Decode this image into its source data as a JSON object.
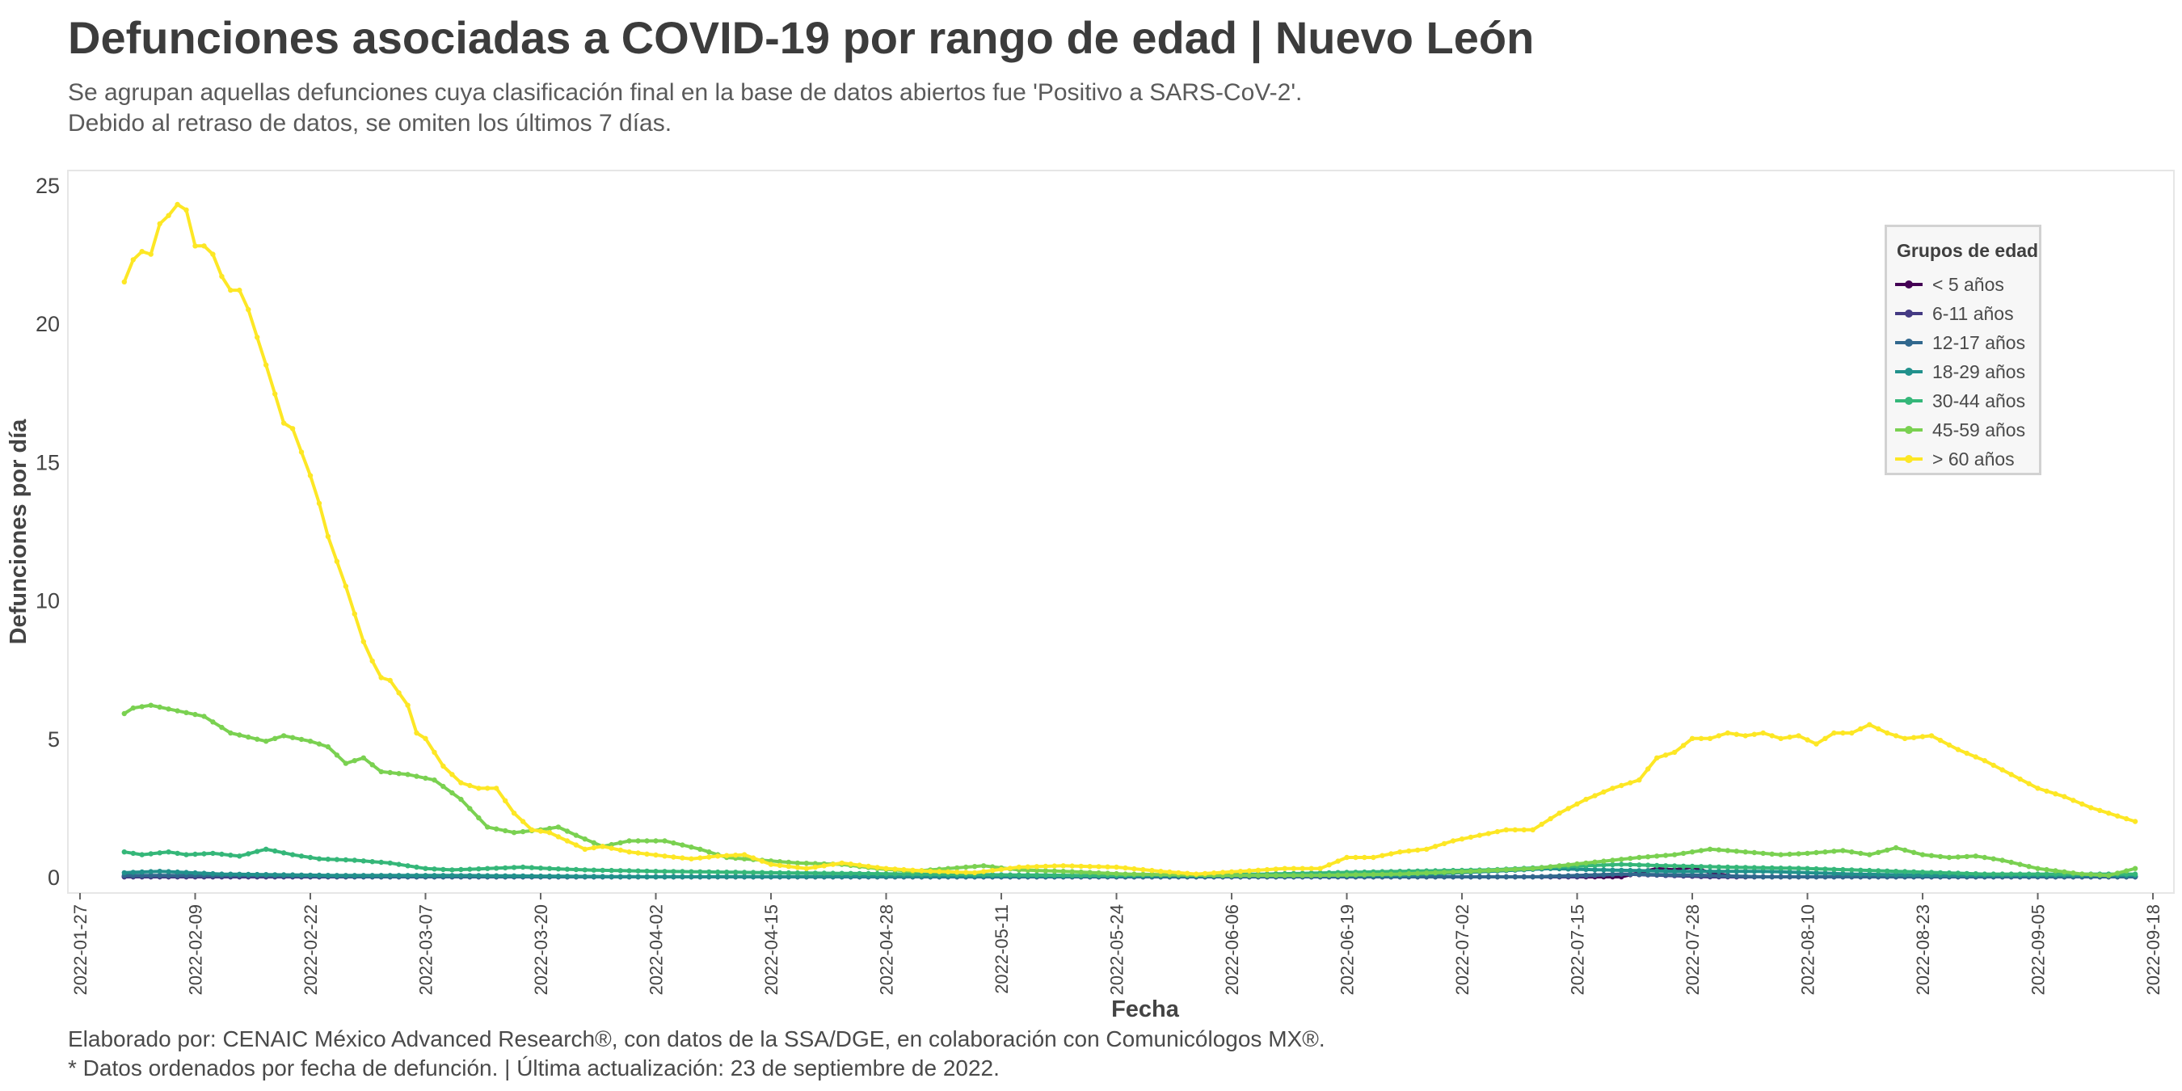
{
  "header": {
    "title": "Defunciones asociadas a COVID-19 por rango de edad | Nuevo León",
    "subtitle_lines": [
      "Se agrupan aquellas defunciones cuya clasificación final en la base de datos abiertos fue 'Positivo a SARS-CoV-2'.",
      "Debido al retraso de datos, se omiten los últimos 7 días."
    ]
  },
  "footer": {
    "lines": [
      "Elaborado por: CENAIC México Advanced Research®, con datos de la SSA/DGE, en colaboración con Comunicólogos MX®.",
      "* Datos ordenados por fecha de defunción. | Última actualización: 23 de septiembre de 2022."
    ]
  },
  "colors": {
    "background": "#ffffff",
    "plot_border": "#e6e6e6",
    "grid": "#ececec",
    "text": "#3b3b3b"
  },
  "chart_data": {
    "type": "line",
    "xlabel": "Fecha",
    "ylabel": "Defunciones por día",
    "x_start": "2022-02-01",
    "x_end": "2022-09-16",
    "xlim": [
      "2022-01-27",
      "2022-09-19"
    ],
    "ylim": [
      0,
      25
    ],
    "x_ticks": [
      "2022-01-27",
      "2022-02-09",
      "2022-02-22",
      "2022-03-07",
      "2022-03-20",
      "2022-04-02",
      "2022-04-15",
      "2022-04-28",
      "2022-05-11",
      "2022-05-24",
      "2022-06-06",
      "2022-06-19",
      "2022-07-02",
      "2022-07-15",
      "2022-07-28",
      "2022-08-10",
      "2022-08-23",
      "2022-09-05",
      "2022-09-18"
    ],
    "y_ticks": [
      0,
      5,
      10,
      15,
      20,
      25
    ],
    "grid": false,
    "legend": {
      "title": "Grupos de edad",
      "position": "top-right"
    },
    "series": [
      {
        "name": "< 5 años",
        "color": "#440154",
        "keyframes": [
          [
            "2022-02-01",
            0
          ],
          [
            "2022-07-20",
            0
          ],
          [
            "2022-07-22",
            0.15
          ],
          [
            "2022-07-24",
            0.3
          ],
          [
            "2022-07-26",
            0.25
          ],
          [
            "2022-07-28",
            0.35
          ],
          [
            "2022-07-30",
            0.15
          ],
          [
            "2022-08-02",
            0
          ],
          [
            "2022-09-16",
            0
          ]
        ]
      },
      {
        "name": "6-11 años",
        "color": "#443a83",
        "keyframes": [
          [
            "2022-02-01",
            0
          ],
          [
            "2022-07-15",
            0
          ],
          [
            "2022-07-20",
            0.1
          ],
          [
            "2022-07-25",
            0.05
          ],
          [
            "2022-07-30",
            0
          ],
          [
            "2022-09-16",
            0
          ]
        ]
      },
      {
        "name": "12-17 años",
        "color": "#31688e",
        "keyframes": [
          [
            "2022-02-01",
            0.05
          ],
          [
            "2022-02-15",
            0.05
          ],
          [
            "2022-03-01",
            0
          ],
          [
            "2022-07-10",
            0
          ],
          [
            "2022-07-20",
            0.1
          ],
          [
            "2022-07-30",
            0.05
          ],
          [
            "2022-08-05",
            0
          ],
          [
            "2022-09-16",
            0
          ]
        ]
      },
      {
        "name": "18-29 años",
        "color": "#21918c",
        "keyframes": [
          [
            "2022-02-01",
            0.15
          ],
          [
            "2022-02-05",
            0.2
          ],
          [
            "2022-02-12",
            0.1
          ],
          [
            "2022-02-25",
            0.05
          ],
          [
            "2022-03-10",
            0.05
          ],
          [
            "2022-04-01",
            0
          ],
          [
            "2022-06-25",
            0.05
          ],
          [
            "2022-07-05",
            0.2
          ],
          [
            "2022-07-12",
            0.3
          ],
          [
            "2022-07-18",
            0.25
          ],
          [
            "2022-07-26",
            0.2
          ],
          [
            "2022-08-05",
            0.2
          ],
          [
            "2022-08-15",
            0.1
          ],
          [
            "2022-08-25",
            0.05
          ],
          [
            "2022-09-16",
            0.05
          ]
        ]
      },
      {
        "name": "30-44 años",
        "color": "#35b779",
        "keyframes": [
          [
            "2022-02-01",
            0.9
          ],
          [
            "2022-02-03",
            0.8
          ],
          [
            "2022-02-06",
            0.9
          ],
          [
            "2022-02-08",
            0.8
          ],
          [
            "2022-02-11",
            0.85
          ],
          [
            "2022-02-14",
            0.75
          ],
          [
            "2022-02-17",
            1.0
          ],
          [
            "2022-02-20",
            0.8
          ],
          [
            "2022-02-23",
            0.65
          ],
          [
            "2022-02-27",
            0.6
          ],
          [
            "2022-03-03",
            0.5
          ],
          [
            "2022-03-07",
            0.3
          ],
          [
            "2022-03-10",
            0.25
          ],
          [
            "2022-03-14",
            0.3
          ],
          [
            "2022-03-18",
            0.35
          ],
          [
            "2022-03-21",
            0.3
          ],
          [
            "2022-03-25",
            0.25
          ],
          [
            "2022-04-02",
            0.2
          ],
          [
            "2022-04-15",
            0.15
          ],
          [
            "2022-05-01",
            0.1
          ],
          [
            "2022-05-20",
            0.05
          ],
          [
            "2022-06-10",
            0.1
          ],
          [
            "2022-06-25",
            0.2
          ],
          [
            "2022-07-05",
            0.25
          ],
          [
            "2022-07-12",
            0.35
          ],
          [
            "2022-07-20",
            0.45
          ],
          [
            "2022-07-25",
            0.4
          ],
          [
            "2022-08-01",
            0.35
          ],
          [
            "2022-08-10",
            0.3
          ],
          [
            "2022-08-20",
            0.2
          ],
          [
            "2022-08-30",
            0.1
          ],
          [
            "2022-09-10",
            0.1
          ],
          [
            "2022-09-16",
            0.1
          ]
        ]
      },
      {
        "name": "45-59 años",
        "color": "#7ad151",
        "keyframes": [
          [
            "2022-02-01",
            5.9
          ],
          [
            "2022-02-02",
            6.1
          ],
          [
            "2022-02-04",
            6.2
          ],
          [
            "2022-02-07",
            6.0
          ],
          [
            "2022-02-10",
            5.8
          ],
          [
            "2022-02-13",
            5.2
          ],
          [
            "2022-02-17",
            4.9
          ],
          [
            "2022-02-19",
            5.1
          ],
          [
            "2022-02-22",
            4.9
          ],
          [
            "2022-02-24",
            4.7
          ],
          [
            "2022-02-26",
            4.1
          ],
          [
            "2022-02-28",
            4.3
          ],
          [
            "2022-03-02",
            3.8
          ],
          [
            "2022-03-05",
            3.7
          ],
          [
            "2022-03-08",
            3.5
          ],
          [
            "2022-03-11",
            2.8
          ],
          [
            "2022-03-14",
            1.8
          ],
          [
            "2022-03-17",
            1.6
          ],
          [
            "2022-03-20",
            1.7
          ],
          [
            "2022-03-22",
            1.8
          ],
          [
            "2022-03-24",
            1.5
          ],
          [
            "2022-03-27",
            1.1
          ],
          [
            "2022-03-30",
            1.3
          ],
          [
            "2022-04-03",
            1.3
          ],
          [
            "2022-04-07",
            1.0
          ],
          [
            "2022-04-10",
            0.7
          ],
          [
            "2022-04-14",
            0.6
          ],
          [
            "2022-04-18",
            0.5
          ],
          [
            "2022-04-23",
            0.45
          ],
          [
            "2022-04-27",
            0.3
          ],
          [
            "2022-05-01",
            0.2
          ],
          [
            "2022-05-05",
            0.3
          ],
          [
            "2022-05-09",
            0.4
          ],
          [
            "2022-05-13",
            0.25
          ],
          [
            "2022-05-18",
            0.2
          ],
          [
            "2022-05-25",
            0.1
          ],
          [
            "2022-06-05",
            0.05
          ],
          [
            "2022-06-15",
            0.05
          ],
          [
            "2022-06-25",
            0.1
          ],
          [
            "2022-07-03",
            0.2
          ],
          [
            "2022-07-10",
            0.3
          ],
          [
            "2022-07-16",
            0.5
          ],
          [
            "2022-07-22",
            0.7
          ],
          [
            "2022-07-26",
            0.8
          ],
          [
            "2022-07-30",
            1.0
          ],
          [
            "2022-08-03",
            0.9
          ],
          [
            "2022-08-07",
            0.8
          ],
          [
            "2022-08-10",
            0.85
          ],
          [
            "2022-08-14",
            0.95
          ],
          [
            "2022-08-17",
            0.8
          ],
          [
            "2022-08-20",
            1.05
          ],
          [
            "2022-08-23",
            0.8
          ],
          [
            "2022-08-26",
            0.7
          ],
          [
            "2022-08-29",
            0.75
          ],
          [
            "2022-09-01",
            0.6
          ],
          [
            "2022-09-05",
            0.3
          ],
          [
            "2022-09-10",
            0.1
          ],
          [
            "2022-09-13",
            0.05
          ],
          [
            "2022-09-16",
            0.3
          ]
        ]
      },
      {
        "name": "> 60 años",
        "color": "#fde725",
        "keyframes": [
          [
            "2022-02-01",
            21.5
          ],
          [
            "2022-02-02",
            22.3
          ],
          [
            "2022-02-03",
            22.6
          ],
          [
            "2022-02-04",
            22.5
          ],
          [
            "2022-02-05",
            23.6
          ],
          [
            "2022-02-06",
            23.9
          ],
          [
            "2022-02-07",
            24.3
          ],
          [
            "2022-02-08",
            24.1
          ],
          [
            "2022-02-09",
            22.8
          ],
          [
            "2022-02-10",
            22.8
          ],
          [
            "2022-02-11",
            22.5
          ],
          [
            "2022-02-12",
            21.7
          ],
          [
            "2022-02-13",
            21.2
          ],
          [
            "2022-02-14",
            21.2
          ],
          [
            "2022-02-15",
            20.5
          ],
          [
            "2022-02-16",
            19.5
          ],
          [
            "2022-02-17",
            18.5
          ],
          [
            "2022-02-19",
            16.4
          ],
          [
            "2022-02-20",
            16.2
          ],
          [
            "2022-02-22",
            14.5
          ],
          [
            "2022-02-23",
            13.5
          ],
          [
            "2022-02-24",
            12.3
          ],
          [
            "2022-02-26",
            10.5
          ],
          [
            "2022-02-28",
            8.5
          ],
          [
            "2022-03-01",
            7.8
          ],
          [
            "2022-03-02",
            7.2
          ],
          [
            "2022-03-03",
            7.1
          ],
          [
            "2022-03-05",
            6.2
          ],
          [
            "2022-03-06",
            5.2
          ],
          [
            "2022-03-07",
            5.0
          ],
          [
            "2022-03-09",
            4.0
          ],
          [
            "2022-03-11",
            3.4
          ],
          [
            "2022-03-13",
            3.2
          ],
          [
            "2022-03-15",
            3.2
          ],
          [
            "2022-03-17",
            2.3
          ],
          [
            "2022-03-19",
            1.7
          ],
          [
            "2022-03-21",
            1.6
          ],
          [
            "2022-03-23",
            1.3
          ],
          [
            "2022-03-25",
            1.0
          ],
          [
            "2022-03-27",
            1.1
          ],
          [
            "2022-03-30",
            0.9
          ],
          [
            "2022-04-03",
            0.75
          ],
          [
            "2022-04-06",
            0.65
          ],
          [
            "2022-04-09",
            0.75
          ],
          [
            "2022-04-12",
            0.8
          ],
          [
            "2022-04-15",
            0.45
          ],
          [
            "2022-04-19",
            0.3
          ],
          [
            "2022-04-23",
            0.5
          ],
          [
            "2022-04-28",
            0.3
          ],
          [
            "2022-05-03",
            0.2
          ],
          [
            "2022-05-08",
            0.15
          ],
          [
            "2022-05-13",
            0.35
          ],
          [
            "2022-05-18",
            0.4
          ],
          [
            "2022-05-24",
            0.35
          ],
          [
            "2022-05-29",
            0.2
          ],
          [
            "2022-06-02",
            0.1
          ],
          [
            "2022-06-07",
            0.2
          ],
          [
            "2022-06-12",
            0.3
          ],
          [
            "2022-06-16",
            0.3
          ],
          [
            "2022-06-19",
            0.7
          ],
          [
            "2022-06-22",
            0.7
          ],
          [
            "2022-06-25",
            0.9
          ],
          [
            "2022-06-28",
            1.0
          ],
          [
            "2022-07-01",
            1.3
          ],
          [
            "2022-07-04",
            1.5
          ],
          [
            "2022-07-07",
            1.7
          ],
          [
            "2022-07-10",
            1.7
          ],
          [
            "2022-07-13",
            2.3
          ],
          [
            "2022-07-16",
            2.8
          ],
          [
            "2022-07-19",
            3.2
          ],
          [
            "2022-07-22",
            3.5
          ],
          [
            "2022-07-24",
            4.3
          ],
          [
            "2022-07-26",
            4.5
          ],
          [
            "2022-07-28",
            5.0
          ],
          [
            "2022-07-30",
            5.0
          ],
          [
            "2022-08-01",
            5.2
          ],
          [
            "2022-08-03",
            5.1
          ],
          [
            "2022-08-05",
            5.2
          ],
          [
            "2022-08-07",
            5.0
          ],
          [
            "2022-08-09",
            5.1
          ],
          [
            "2022-08-11",
            4.8
          ],
          [
            "2022-08-13",
            5.2
          ],
          [
            "2022-08-15",
            5.2
          ],
          [
            "2022-08-17",
            5.5
          ],
          [
            "2022-08-19",
            5.2
          ],
          [
            "2022-08-21",
            5.0
          ],
          [
            "2022-08-24",
            5.1
          ],
          [
            "2022-08-27",
            4.6
          ],
          [
            "2022-08-30",
            4.2
          ],
          [
            "2022-09-02",
            3.7
          ],
          [
            "2022-09-05",
            3.2
          ],
          [
            "2022-09-08",
            2.9
          ],
          [
            "2022-09-11",
            2.5
          ],
          [
            "2022-09-14",
            2.2
          ],
          [
            "2022-09-16",
            2.0
          ]
        ]
      }
    ]
  }
}
